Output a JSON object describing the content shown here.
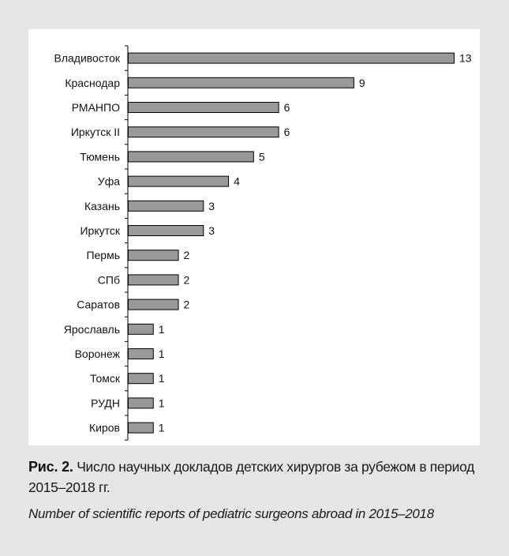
{
  "chart_data": {
    "type": "bar",
    "orientation": "horizontal",
    "categories": [
      "Владивосток",
      "Краснодар",
      "РМАНПО",
      "Иркутск II",
      "Тюмень",
      "Уфа",
      "Казань",
      "Иркутск",
      "Пермь",
      "СПб",
      "Саратов",
      "Ярославль",
      "Воронеж",
      "Томск",
      "РУДН",
      "Киров"
    ],
    "values": [
      13,
      9,
      6,
      6,
      5,
      4,
      3,
      3,
      2,
      2,
      2,
      1,
      1,
      1,
      1,
      1
    ],
    "title": "",
    "xlabel": "",
    "ylabel": "",
    "xlim": [
      0,
      13
    ],
    "grid": false,
    "data_labels": true,
    "bar_color": "#999999",
    "bar_edge_color": "#000000"
  },
  "caption": {
    "figure_label": "Рис. 2.",
    "ru_text": "Число научных докладов детских хирургов за рубежом в период 2015–2018 гг.",
    "en_text": "Number of scientific reports of pediatric surgeons abroad in 2015–2018"
  }
}
